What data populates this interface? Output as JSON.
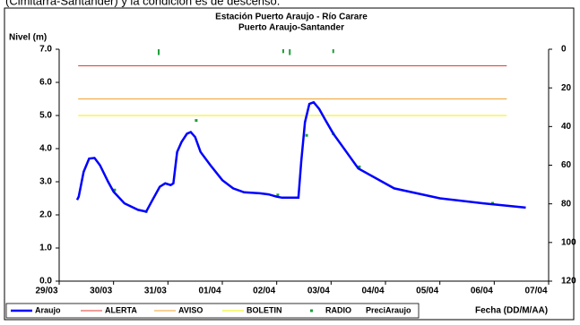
{
  "caption": "(Cimitarra-Santander) y la condición es de descenso.",
  "chart_data": {
    "type": "line",
    "title": "Estación Puerto Araujo - Río Carare",
    "subtitle": "Puerto Araujo-Santander",
    "y_label": "Nivel (m)",
    "x_label": "Fecha (DD/M/AA)",
    "xlim": [
      0,
      9
    ],
    "xticks": [
      {
        "value": 0,
        "label": "29/03"
      },
      {
        "value": 1,
        "label": "30/03"
      },
      {
        "value": 2,
        "label": "31/03"
      },
      {
        "value": 3,
        "label": "01/04"
      },
      {
        "value": 4,
        "label": "02/04"
      },
      {
        "value": 5,
        "label": "03/04"
      },
      {
        "value": 6,
        "label": "04/04"
      },
      {
        "value": 7,
        "label": "05/04"
      },
      {
        "value": 8,
        "label": "06/04"
      },
      {
        "value": 9,
        "label": "07/04"
      }
    ],
    "ylim": [
      0,
      7
    ],
    "yticks": [
      {
        "value": 0,
        "label": "0.0"
      },
      {
        "value": 1,
        "label": "1.0"
      },
      {
        "value": 2,
        "label": "2.0"
      },
      {
        "value": 3,
        "label": "3.0"
      },
      {
        "value": 4,
        "label": "4.0"
      },
      {
        "value": 5,
        "label": "5.0"
      },
      {
        "value": 6,
        "label": "6.0"
      },
      {
        "value": 7,
        "label": "7.0"
      }
    ],
    "y2lim": [
      0,
      120
    ],
    "y2ticks": [
      0,
      20,
      40,
      60,
      80,
      100,
      120
    ],
    "y2_inverted": true,
    "grid": false,
    "legend": "bottom",
    "series": [
      {
        "name": "Araujo",
        "kind": "line",
        "color": "#0000ff",
        "width": 2.5,
        "x": [
          0.33,
          0.36,
          0.45,
          0.55,
          0.65,
          0.75,
          0.9,
          1.0,
          1.2,
          1.45,
          1.6,
          1.7,
          1.85,
          1.95,
          2.05,
          2.1,
          2.17,
          2.25,
          2.35,
          2.42,
          2.5,
          2.6,
          2.78,
          3.0,
          3.2,
          3.4,
          3.69,
          3.85,
          4.0,
          4.1,
          4.4,
          4.45,
          4.52,
          4.6,
          4.68,
          4.78,
          4.9,
          5.04,
          5.5,
          6.16,
          7.0,
          7.8,
          8.58
        ],
        "values": [
          2.45,
          2.55,
          3.3,
          3.7,
          3.72,
          3.5,
          3.0,
          2.7,
          2.35,
          2.15,
          2.1,
          2.4,
          2.85,
          2.95,
          2.9,
          2.95,
          3.9,
          4.2,
          4.45,
          4.5,
          4.35,
          3.9,
          3.5,
          3.05,
          2.8,
          2.68,
          2.65,
          2.62,
          2.55,
          2.52,
          2.52,
          3.6,
          4.8,
          5.35,
          5.4,
          5.2,
          4.85,
          4.45,
          3.4,
          2.8,
          2.5,
          2.35,
          2.22
        ]
      },
      {
        "name": "ALERTA",
        "kind": "line",
        "color": "#e03c31",
        "width": 1,
        "x": [
          0.35,
          8.23
        ],
        "values": [
          6.5,
          6.5
        ]
      },
      {
        "name": "AVISO",
        "kind": "line",
        "color": "#f0a030",
        "width": 1,
        "x": [
          0.35,
          8.23
        ],
        "values": [
          5.5,
          5.5
        ]
      },
      {
        "name": "BOLETIN",
        "kind": "line",
        "color": "#f0f000",
        "width": 1,
        "x": [
          0.35,
          8.23
        ],
        "values": [
          5.0,
          5.0
        ]
      },
      {
        "name": "RADIO",
        "kind": "scatter",
        "color": "#1e9e3a",
        "x": [
          1.02,
          1.6,
          2.52,
          4.02,
          4.55,
          5.04,
          5.52,
          7.97
        ],
        "values": [
          2.75,
          2.1,
          4.85,
          2.6,
          4.4,
          4.45,
          3.45,
          2.35
        ]
      },
      {
        "name": "PreciAraujo",
        "kind": "bar",
        "axis": "y2",
        "color": "#1e9e3a",
        "x": [
          1.83,
          4.12,
          4.24,
          5.04
        ],
        "values": [
          3,
          2,
          3,
          2
        ]
      }
    ]
  }
}
